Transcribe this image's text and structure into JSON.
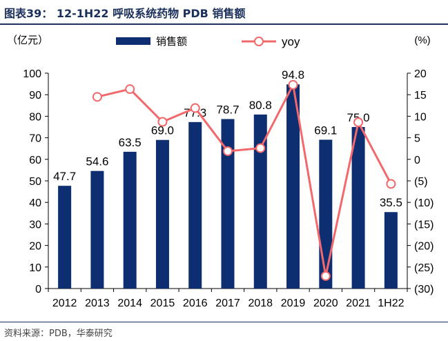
{
  "figure": {
    "title": "图表39： 12-1H22 呼吸系统药物 PDB 销售额",
    "source": "资料来源：PDB，华泰研究"
  },
  "chart_data": {
    "type": "bar",
    "categories": [
      "2012",
      "2013",
      "2014",
      "2015",
      "2016",
      "2017",
      "2018",
      "2019",
      "2020",
      "2021",
      "1H22"
    ],
    "series": [
      {
        "name": "销售额",
        "type": "bar",
        "axis": "left",
        "color": "#0e2e72",
        "values": [
          47.7,
          54.6,
          63.5,
          69.0,
          77.3,
          78.7,
          80.8,
          94.8,
          69.1,
          75.0,
          35.5
        ],
        "labels": [
          "47.7",
          "54.6",
          "63.5",
          "69.0",
          "77.3",
          "78.7",
          "80.8",
          "94.8",
          "69.1",
          "75.0",
          "35.5"
        ]
      },
      {
        "name": "yoy",
        "type": "line",
        "axis": "right",
        "color": "#f2686b",
        "values": [
          null,
          14.5,
          16.3,
          8.7,
          11.9,
          1.9,
          2.6,
          17.3,
          -27.1,
          8.6,
          -5.7
        ]
      }
    ],
    "y_left": {
      "label": "（亿元）",
      "ylim": [
        0,
        100
      ],
      "ticks": [
        0,
        10,
        20,
        30,
        40,
        50,
        60,
        70,
        80,
        90,
        100
      ],
      "tick_labels": [
        "0",
        "10",
        "20",
        "30",
        "40",
        "50",
        "60",
        "70",
        "80",
        "90",
        "100"
      ]
    },
    "y_right": {
      "label": "(%)",
      "ylim": [
        -30,
        20
      ],
      "ticks": [
        20,
        15,
        10,
        5,
        0,
        -5,
        -10,
        -15,
        -20,
        -25,
        -30
      ],
      "tick_labels": [
        "20",
        "15",
        "10",
        "5",
        "0",
        "(5)",
        "(10)",
        "(15)",
        "(20)",
        "(25)",
        "(30)"
      ]
    },
    "legend_position": "top",
    "grid": false
  }
}
